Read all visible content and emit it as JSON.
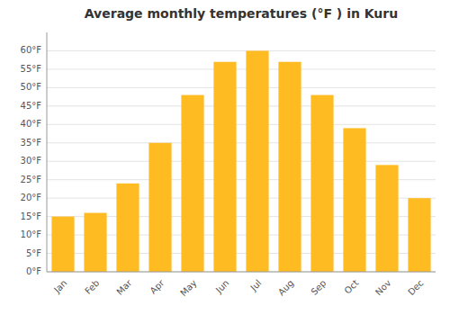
{
  "chart_data": {
    "type": "bar",
    "title": "Average monthly temperatures (°F ) in Kuru",
    "categories": [
      "Jan",
      "Feb",
      "Mar",
      "Apr",
      "May",
      "Jun",
      "Jul",
      "Aug",
      "Sep",
      "Oct",
      "Nov",
      "Dec"
    ],
    "values": [
      15,
      16,
      24,
      35,
      48,
      57,
      60,
      57,
      48,
      39,
      29,
      20
    ],
    "color": "#FFBB22",
    "ylim": [
      0,
      65
    ],
    "yticks": [
      {
        "value": 0,
        "label": "0°F"
      },
      {
        "value": 5,
        "label": "5°F"
      },
      {
        "value": 10,
        "label": "10°F"
      },
      {
        "value": 15,
        "label": "15°F"
      },
      {
        "value": 20,
        "label": "20°F"
      },
      {
        "value": 25,
        "label": "25°F"
      },
      {
        "value": 30,
        "label": "30°F"
      },
      {
        "value": 35,
        "label": "35°F"
      },
      {
        "value": 40,
        "label": "40°F"
      },
      {
        "value": 45,
        "label": "45°F"
      },
      {
        "value": 50,
        "label": "50°F"
      },
      {
        "value": 55,
        "label": "55°F"
      },
      {
        "value": 60,
        "label": "60°F"
      }
    ],
    "grid": true
  }
}
